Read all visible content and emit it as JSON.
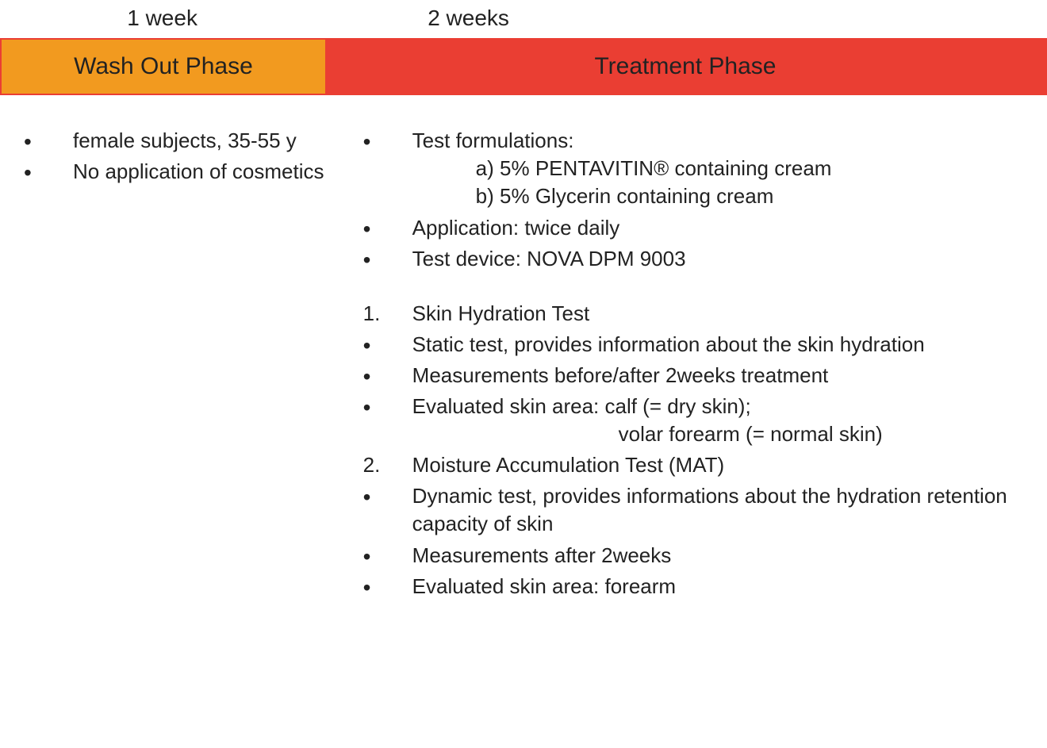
{
  "colors": {
    "wash_bg": "#f29a1f",
    "treat_bg": "#ea3e33",
    "bar_border": "#ea3e33",
    "text": "#222222",
    "bg": "#ffffff"
  },
  "timeline": {
    "left_duration": "1 week",
    "right_duration": "2 weeks",
    "left_phase": "Wash Out Phase",
    "right_phase": "Treatment Phase",
    "left_width_pct": 31,
    "right_width_pct": 69
  },
  "left_bullets": [
    "female subjects, 35-55 y",
    "No application of cosmetics"
  ],
  "right_section1": {
    "formulations_label": "Test formulations:",
    "formulation_a": "a) 5% PENTAVITIN® containing cream",
    "formulation_b": "b) 5% Glycerin containing cream",
    "application": "Application: twice daily",
    "device": "Test device: NOVA DPM 9003"
  },
  "right_tests": {
    "t1_num": "1.",
    "t1_title": "Skin Hydration Test",
    "t1_b1": "Static test, provides information about the skin hydration",
    "t1_b2": "Measurements before/after 2weeks treatment",
    "t1_b3": "Evaluated skin area: calf (= dry skin);",
    "t1_b3_sub": "volar forearm (= normal skin)",
    "t2_num": "2.",
    "t2_title": "Moisture Accumulation Test (MAT)",
    "t2_b1": "Dynamic test, provides informations about the hydration retention capacity of skin",
    "t2_b2": "Measurements after 2weeks",
    "t2_b3": "Evaluated skin area: forearm"
  }
}
